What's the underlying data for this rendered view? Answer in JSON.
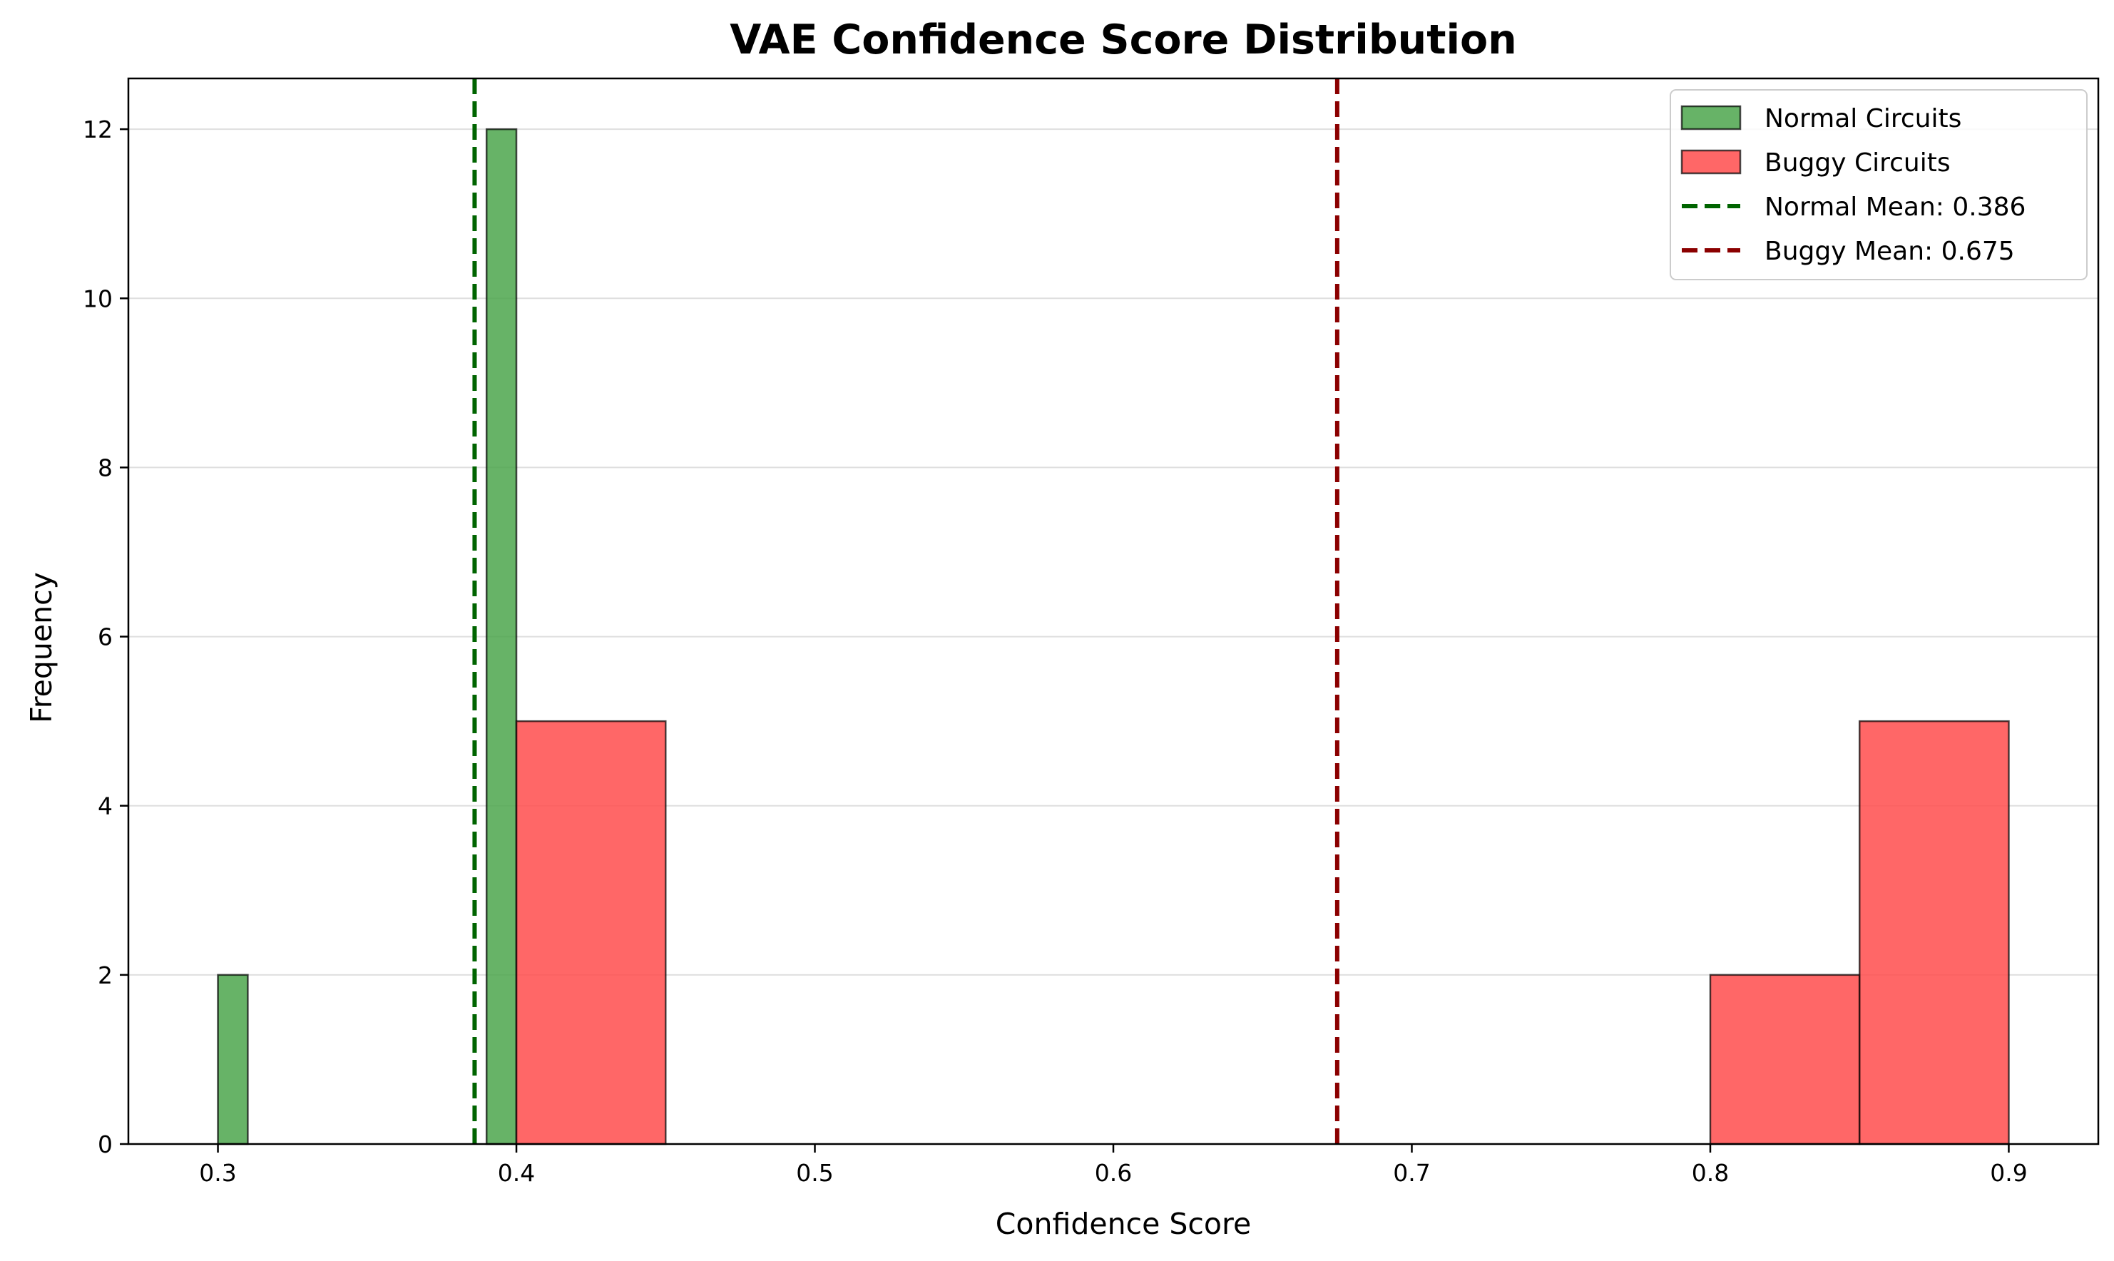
{
  "chart_data": {
    "type": "bar",
    "title": "VAE Confidence Score Distribution",
    "xlabel": "Confidence Score",
    "ylabel": "Frequency",
    "xlim": [
      0.27,
      0.93
    ],
    "ylim": [
      0,
      12.6
    ],
    "xticks": [
      0.3,
      0.4,
      0.5,
      0.6,
      0.7,
      0.8,
      0.9
    ],
    "xtick_labels": [
      "0.3",
      "0.4",
      "0.5",
      "0.6",
      "0.7",
      "0.8",
      "0.9"
    ],
    "yticks": [
      0,
      2,
      4,
      6,
      8,
      10,
      12
    ],
    "ytick_labels": [
      "0",
      "2",
      "4",
      "6",
      "8",
      "10",
      "12"
    ],
    "grid": "y",
    "legend_position": "top-right",
    "series": [
      {
        "name": "Normal Circuits",
        "color": "#4ca64c",
        "bins": [
          {
            "x0": 0.3,
            "x1": 0.31,
            "count": 2
          },
          {
            "x0": 0.39,
            "x1": 0.4,
            "count": 12
          }
        ]
      },
      {
        "name": "Buggy Circuits",
        "color": "#ff4c4c",
        "bins": [
          {
            "x0": 0.4,
            "x1": 0.45,
            "count": 5
          },
          {
            "x0": 0.8,
            "x1": 0.85,
            "count": 2
          },
          {
            "x0": 0.85,
            "x1": 0.9,
            "count": 5
          }
        ]
      }
    ],
    "mean_lines": [
      {
        "name": "Normal Mean: 0.386",
        "value": 0.386,
        "color": "#006400"
      },
      {
        "name": "Buggy Mean: 0.675",
        "value": 0.675,
        "color": "#8b0000"
      }
    ]
  }
}
